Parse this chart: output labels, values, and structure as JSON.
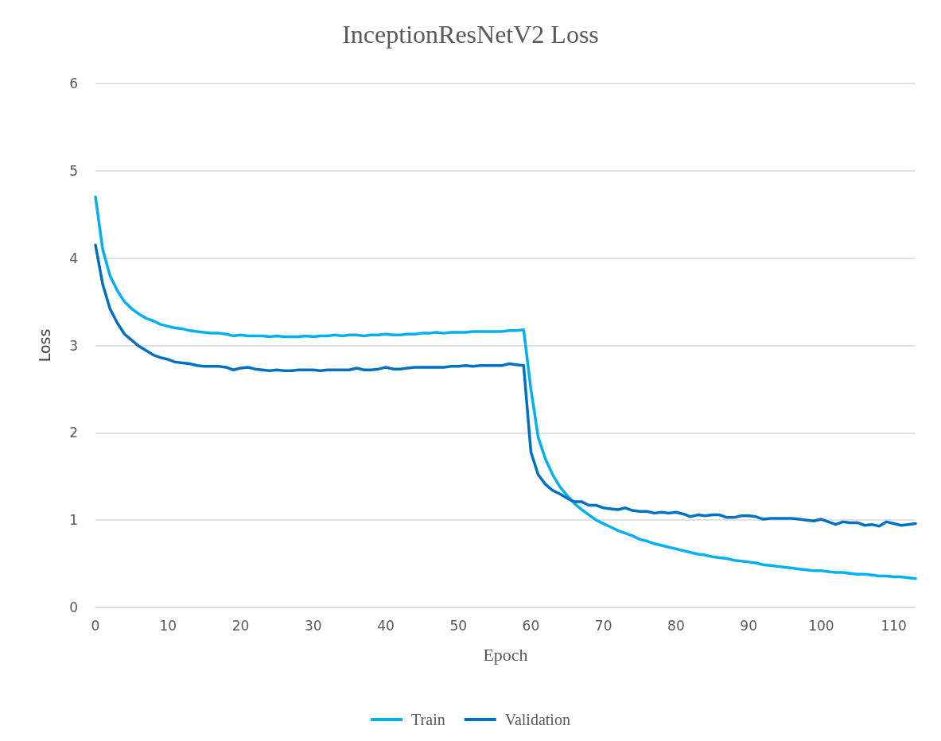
{
  "chart_data": {
    "type": "line",
    "title": "InceptionResNetV2 Loss",
    "xlabel": "Epoch",
    "ylabel": "Loss",
    "x": [
      0,
      1,
      2,
      3,
      4,
      5,
      6,
      7,
      8,
      9,
      10,
      11,
      12,
      13,
      14,
      15,
      16,
      17,
      18,
      19,
      20,
      21,
      22,
      23,
      24,
      25,
      26,
      27,
      28,
      29,
      30,
      31,
      32,
      33,
      34,
      35,
      36,
      37,
      38,
      39,
      40,
      41,
      42,
      43,
      44,
      45,
      46,
      47,
      48,
      49,
      50,
      51,
      52,
      53,
      54,
      55,
      56,
      57,
      58,
      59,
      60,
      61,
      62,
      63,
      64,
      65,
      66,
      67,
      68,
      69,
      70,
      71,
      72,
      73,
      74,
      75,
      76,
      77,
      78,
      79,
      80,
      81,
      82,
      83,
      84,
      85,
      86,
      87,
      88,
      89,
      90,
      91,
      92,
      93,
      94,
      95,
      96,
      97,
      98,
      99,
      100,
      101,
      102,
      103,
      104,
      105,
      106,
      107,
      108,
      109,
      110,
      111,
      112,
      113
    ],
    "series": [
      {
        "name": "Train",
        "color": "#00b0f0",
        "values": [
          4.7,
          4.1,
          3.8,
          3.63,
          3.5,
          3.42,
          3.36,
          3.31,
          3.28,
          3.24,
          3.22,
          3.2,
          3.19,
          3.17,
          3.16,
          3.15,
          3.14,
          3.14,
          3.13,
          3.11,
          3.12,
          3.11,
          3.11,
          3.11,
          3.1,
          3.11,
          3.1,
          3.1,
          3.1,
          3.11,
          3.1,
          3.11,
          3.11,
          3.12,
          3.11,
          3.12,
          3.12,
          3.11,
          3.12,
          3.12,
          3.13,
          3.12,
          3.12,
          3.13,
          3.13,
          3.14,
          3.14,
          3.15,
          3.14,
          3.15,
          3.15,
          3.15,
          3.16,
          3.16,
          3.16,
          3.16,
          3.16,
          3.17,
          3.17,
          3.18,
          2.5,
          1.95,
          1.7,
          1.52,
          1.38,
          1.28,
          1.19,
          1.12,
          1.06,
          1.0,
          0.96,
          0.92,
          0.88,
          0.85,
          0.82,
          0.78,
          0.76,
          0.73,
          0.71,
          0.69,
          0.67,
          0.65,
          0.63,
          0.61,
          0.6,
          0.58,
          0.57,
          0.56,
          0.54,
          0.53,
          0.52,
          0.51,
          0.49,
          0.48,
          0.47,
          0.46,
          0.45,
          0.44,
          0.43,
          0.42,
          0.42,
          0.41,
          0.4,
          0.4,
          0.39,
          0.38,
          0.38,
          0.37,
          0.36,
          0.36,
          0.35,
          0.35,
          0.34,
          0.33
        ]
      },
      {
        "name": "Validation",
        "color": "#0070c0",
        "values": [
          4.15,
          3.7,
          3.42,
          3.26,
          3.13,
          3.06,
          2.99,
          2.94,
          2.89,
          2.86,
          2.84,
          2.81,
          2.8,
          2.79,
          2.77,
          2.76,
          2.76,
          2.76,
          2.75,
          2.72,
          2.74,
          2.75,
          2.73,
          2.72,
          2.71,
          2.72,
          2.71,
          2.71,
          2.72,
          2.72,
          2.72,
          2.71,
          2.72,
          2.72,
          2.72,
          2.72,
          2.74,
          2.72,
          2.72,
          2.73,
          2.75,
          2.73,
          2.73,
          2.74,
          2.75,
          2.75,
          2.75,
          2.75,
          2.75,
          2.76,
          2.76,
          2.77,
          2.76,
          2.77,
          2.77,
          2.77,
          2.77,
          2.79,
          2.78,
          2.77,
          1.78,
          1.52,
          1.41,
          1.34,
          1.3,
          1.25,
          1.21,
          1.21,
          1.17,
          1.17,
          1.14,
          1.13,
          1.12,
          1.14,
          1.11,
          1.1,
          1.1,
          1.08,
          1.09,
          1.08,
          1.09,
          1.07,
          1.04,
          1.06,
          1.05,
          1.06,
          1.06,
          1.03,
          1.03,
          1.05,
          1.05,
          1.04,
          1.01,
          1.02,
          1.02,
          1.02,
          1.02,
          1.01,
          1.0,
          0.99,
          1.01,
          0.98,
          0.95,
          0.98,
          0.97,
          0.97,
          0.94,
          0.95,
          0.93,
          0.98,
          0.96,
          0.94,
          0.95,
          0.96
        ]
      }
    ],
    "xlim": [
      0,
      113
    ],
    "xticks": [
      0,
      10,
      20,
      30,
      40,
      50,
      60,
      70,
      80,
      90,
      100,
      110
    ],
    "ylim": [
      0,
      6
    ],
    "yticks": [
      0,
      1,
      2,
      3,
      4,
      5,
      6
    ],
    "grid": "y",
    "legend": "bottom",
    "marker": "none",
    "line_style": "solid"
  }
}
